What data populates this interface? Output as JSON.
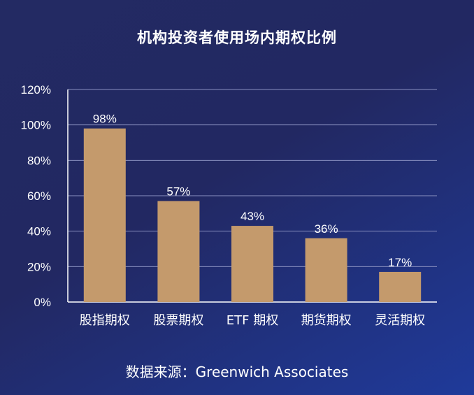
{
  "chart_data": {
    "type": "bar",
    "title": "机构投资者使用场内期权比例",
    "categories": [
      "股指期权",
      "股票期权",
      "ETF 期权",
      "期货期权",
      "灵活期权"
    ],
    "values": [
      98,
      57,
      43,
      36,
      17
    ],
    "value_labels": [
      "98%",
      "57%",
      "43%",
      "36%",
      "17%"
    ],
    "ylim": [
      0,
      120
    ],
    "yticks": [
      {
        "value": 0,
        "label": "0%"
      },
      {
        "value": 20,
        "label": "20%"
      },
      {
        "value": 40,
        "label": "40%"
      },
      {
        "value": 60,
        "label": "60%"
      },
      {
        "value": 80,
        "label": "80%"
      },
      {
        "value": 100,
        "label": "100%"
      },
      {
        "value": 120,
        "label": "120%"
      }
    ],
    "grid": true,
    "bar_color": "#c49a6c",
    "grid_color": "#8a90c0",
    "source": "数据来源：Greenwich Associates"
  }
}
